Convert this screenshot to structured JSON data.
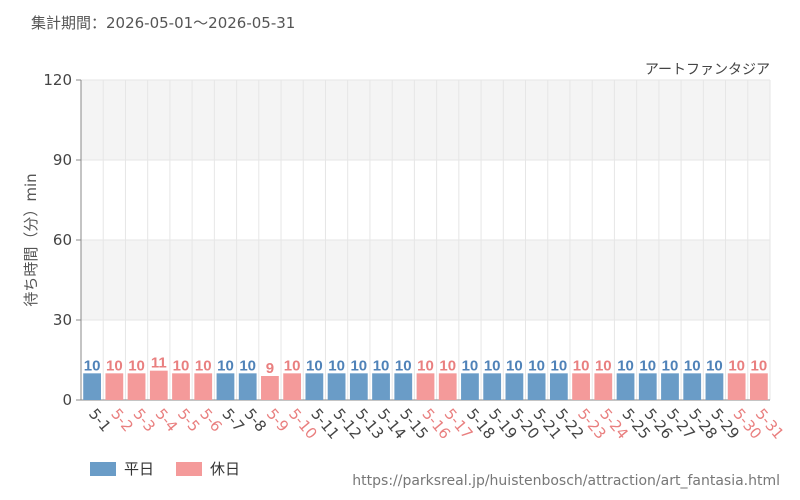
{
  "header": {
    "period_text": "集計期間：2026-05-01～2026-05-31"
  },
  "footer": {
    "source_url": "https://parksreal.jp/huistenbosch/attraction/art_fantasia.html"
  },
  "colors": {
    "weekday": "#6a9cc7",
    "holiday": "#f49a9a",
    "weekday_label": "#4f82b8",
    "holiday_label": "#e97f7f",
    "grid": "#e6e6e6",
    "band": "#f4f4f4",
    "axis_text": "#444444",
    "axis_line": "#888888"
  },
  "chart_data": {
    "type": "bar",
    "title": "アートファンタジア",
    "ylabel": "待ち時間（分）min",
    "xlabel": "",
    "ylim": [
      0,
      120
    ],
    "yticks": [
      0,
      30,
      60,
      90,
      120
    ],
    "grid": true,
    "legend_position": "bottom-left",
    "series": [
      {
        "name": "平日",
        "color_key": "weekday"
      },
      {
        "name": "休日",
        "color_key": "holiday"
      }
    ],
    "categories": [
      "5-1",
      "5-2",
      "5-3",
      "5-4",
      "5-5",
      "5-6",
      "5-7",
      "5-8",
      "5-9",
      "5-10",
      "5-11",
      "5-12",
      "5-13",
      "5-14",
      "5-15",
      "5-16",
      "5-17",
      "5-18",
      "5-19",
      "5-20",
      "5-21",
      "5-22",
      "5-23",
      "5-24",
      "5-25",
      "5-26",
      "5-27",
      "5-28",
      "5-29",
      "5-30",
      "5-31"
    ],
    "values": [
      10,
      10,
      10,
      11,
      10,
      10,
      10,
      10,
      9,
      10,
      10,
      10,
      10,
      10,
      10,
      10,
      10,
      10,
      10,
      10,
      10,
      10,
      10,
      10,
      10,
      10,
      10,
      10,
      10,
      10,
      10
    ],
    "day_types": [
      "平日",
      "休日",
      "休日",
      "休日",
      "休日",
      "休日",
      "平日",
      "平日",
      "休日",
      "休日",
      "平日",
      "平日",
      "平日",
      "平日",
      "平日",
      "休日",
      "休日",
      "平日",
      "平日",
      "平日",
      "平日",
      "平日",
      "休日",
      "休日",
      "平日",
      "平日",
      "平日",
      "平日",
      "平日",
      "休日",
      "休日"
    ]
  }
}
